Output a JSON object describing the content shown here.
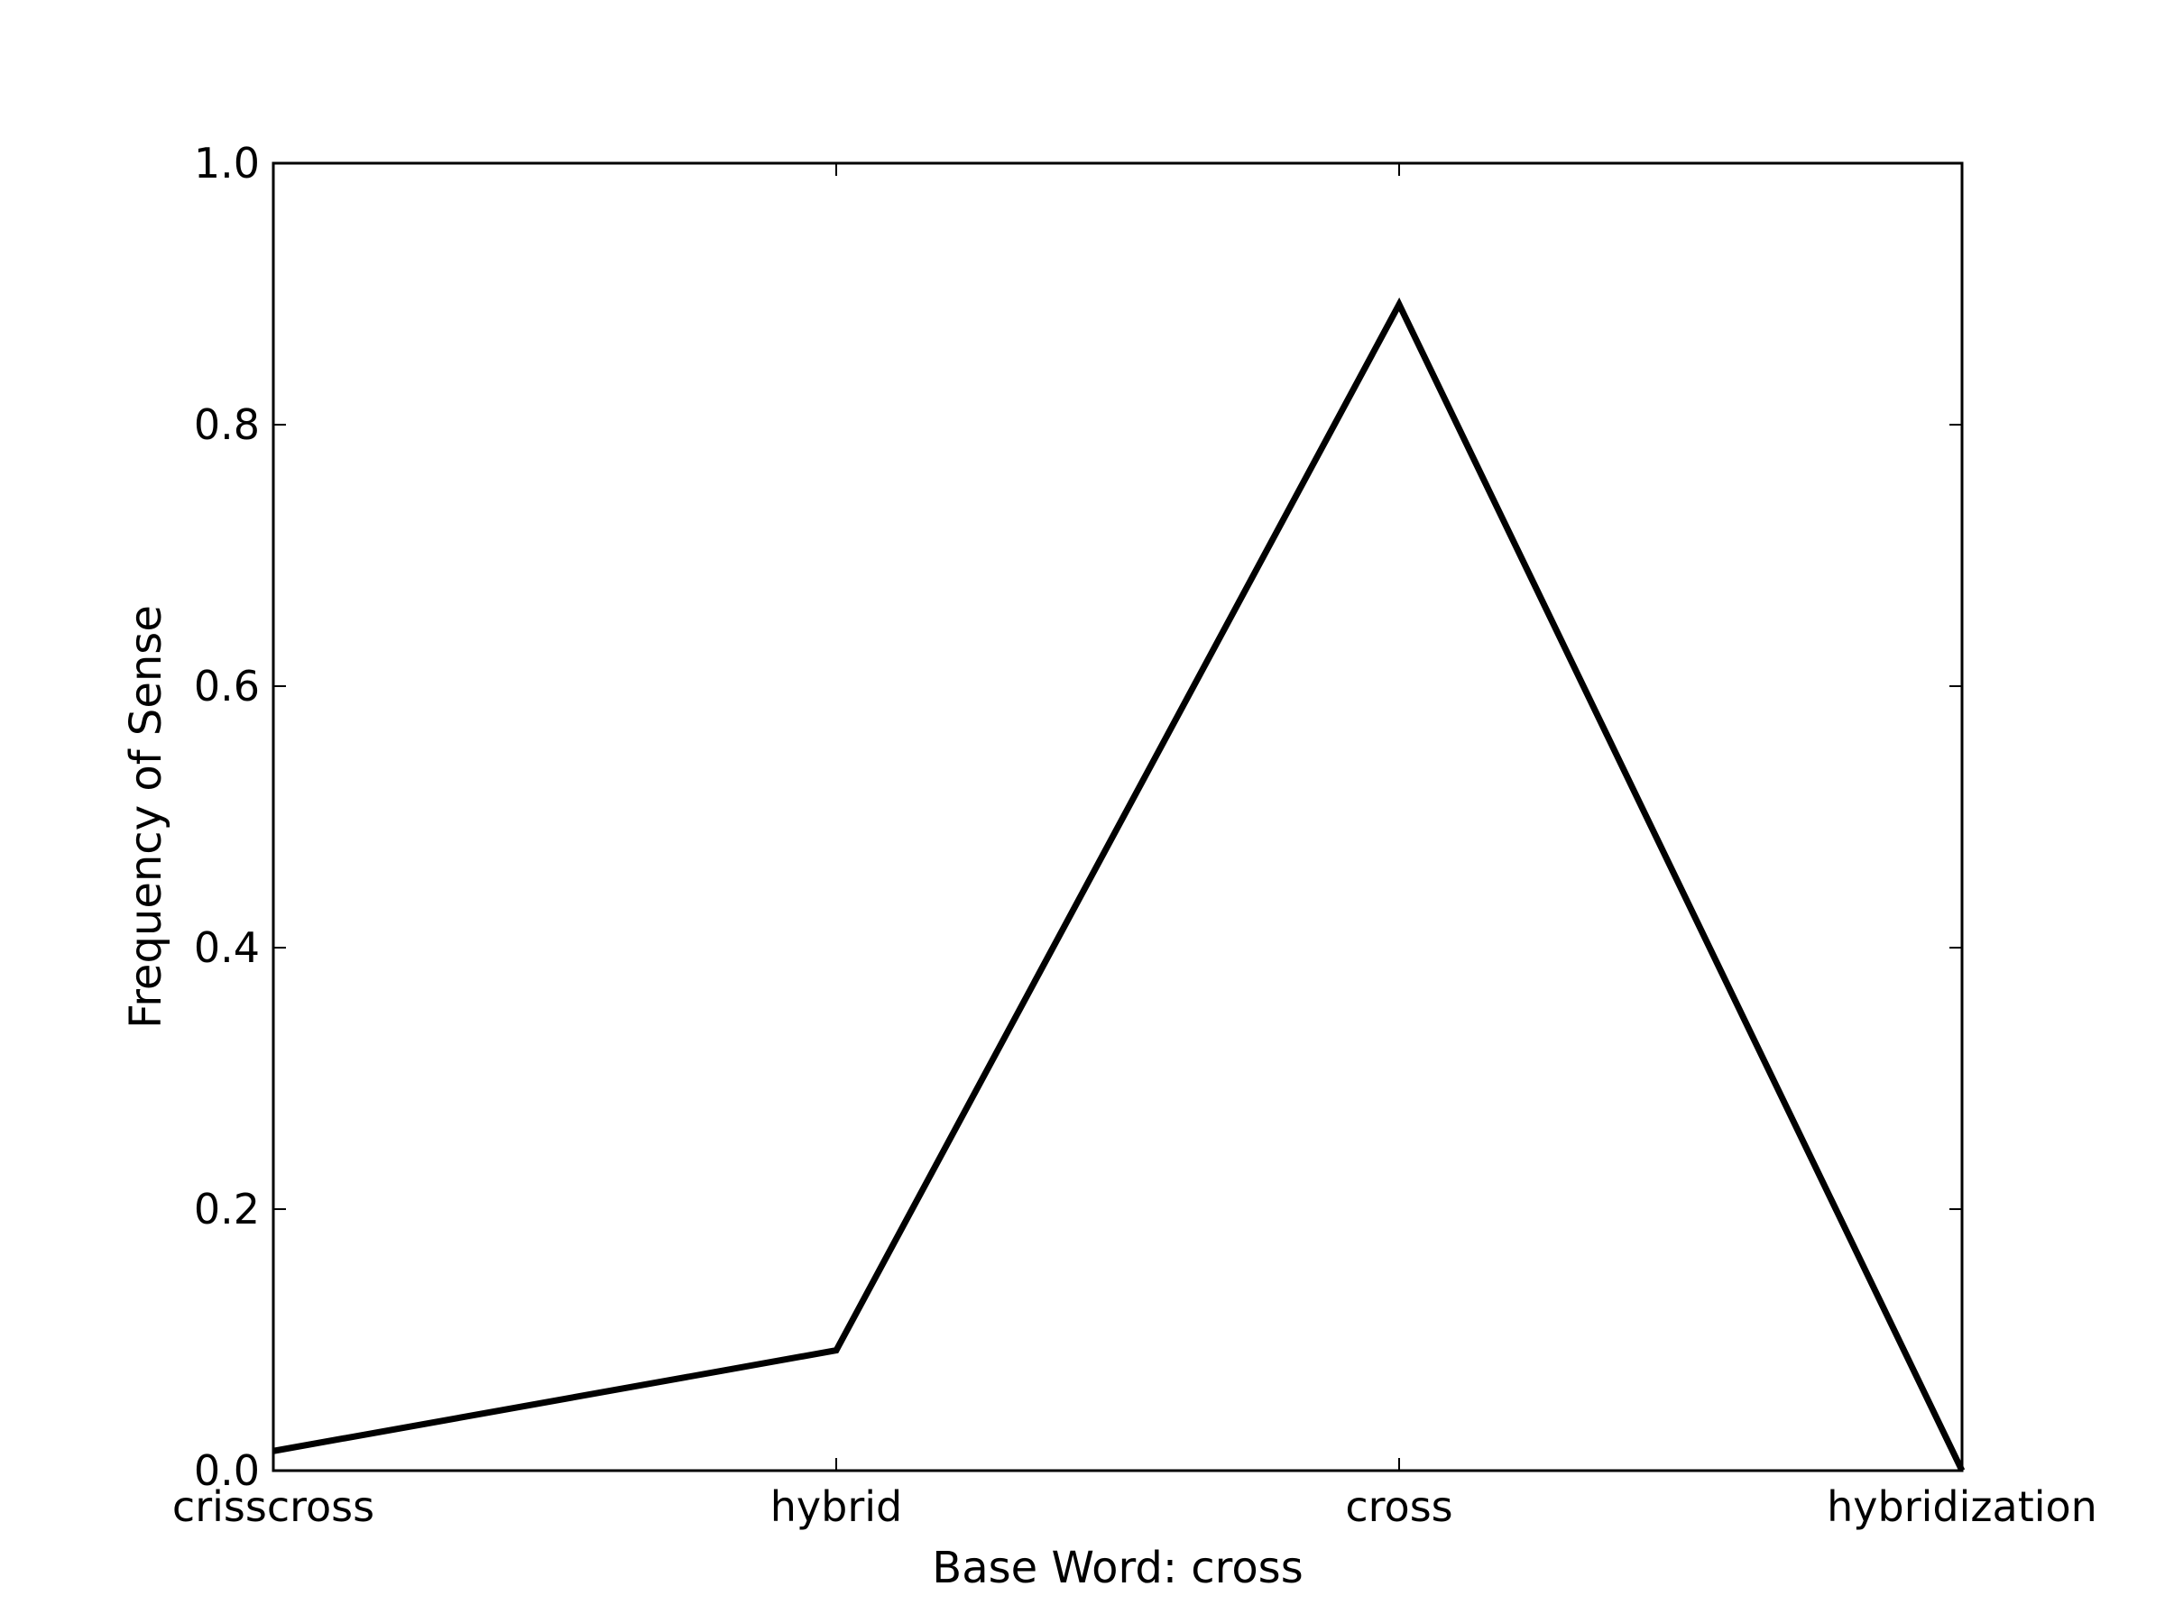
{
  "chart_data": {
    "type": "line",
    "title": "",
    "xlabel": "Base Word: cross",
    "ylabel": "Frequency of Sense",
    "categories": [
      "crisscross",
      "hybrid",
      "cross",
      "hybridization"
    ],
    "series": [
      {
        "values": [
          0.015,
          0.092,
          0.892,
          0.0
        ],
        "color": "#000000"
      }
    ],
    "ylim": [
      0.0,
      1.0
    ],
    "yticks": [
      0.0,
      0.2,
      0.4,
      0.6,
      0.8,
      1.0
    ],
    "ytick_labels": [
      "0.0",
      "0.2",
      "0.4",
      "0.6",
      "0.8",
      "1.0"
    ],
    "grid": false,
    "legend": "none"
  }
}
